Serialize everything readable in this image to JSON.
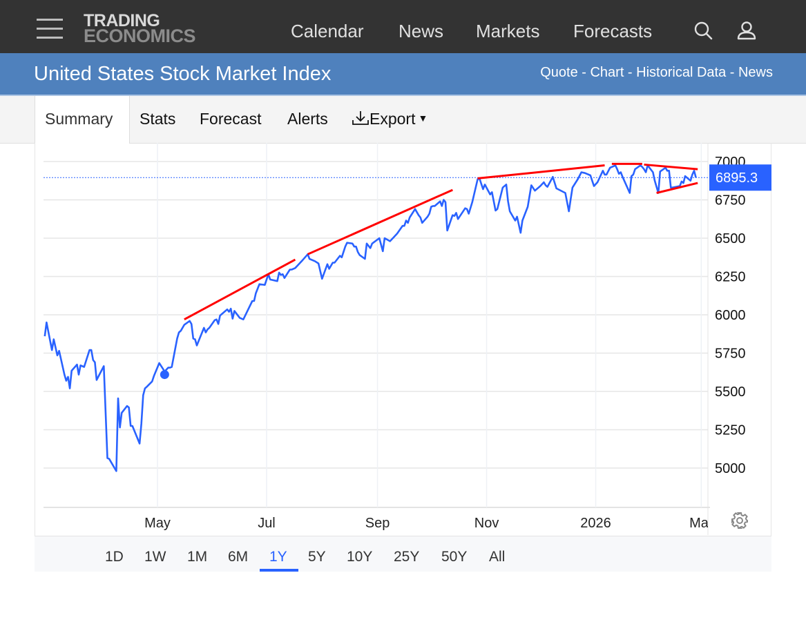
{
  "header": {
    "logo_line1": "TRADING",
    "logo_line2": "ECONOMICS",
    "nav": [
      "Calendar",
      "News",
      "Markets",
      "Forecasts"
    ],
    "icons": [
      "menu-icon",
      "search-icon",
      "user-icon"
    ]
  },
  "titlebar": {
    "title": "United States Stock Market Index",
    "links": [
      "Quote",
      "Chart",
      "Historical Data",
      "News"
    ],
    "separator": " - "
  },
  "tabs": {
    "items": [
      "Summary",
      "Stats",
      "Forecast",
      "Alerts"
    ],
    "export_label": "Export",
    "active": "Summary"
  },
  "range": {
    "options": [
      "1D",
      "1W",
      "1M",
      "6M",
      "1Y",
      "5Y",
      "10Y",
      "25Y",
      "50Y",
      "All"
    ],
    "selected": "1Y"
  },
  "colors": {
    "topbar": "#333333",
    "titlebar": "#4f81bd",
    "series": "#2962ff",
    "trendline": "#ff0000",
    "accent": "#2962ff"
  },
  "chart_data": {
    "type": "line",
    "title": "",
    "xlabel": "",
    "ylabel": "",
    "ylim": [
      4750,
      7100
    ],
    "y_ticks": [
      7000,
      6750,
      6500,
      6250,
      6000,
      5750,
      5500,
      5250,
      5000
    ],
    "x_ticks": [
      {
        "date": "2025-05-01",
        "label": "May"
      },
      {
        "date": "2025-07-01",
        "label": "Jul"
      },
      {
        "date": "2025-09-01",
        "label": "Sep"
      },
      {
        "date": "2025-11-01",
        "label": "Nov"
      },
      {
        "date": "2026-01-01",
        "label": "2026"
      },
      {
        "date": "2026-03-01",
        "label": "Mar"
      }
    ],
    "grid": true,
    "y_axis_position": "right",
    "last_value": {
      "value": 6895.3,
      "label": "6895.3"
    },
    "marker": {
      "date": "2025-05-05",
      "value": 5610
    },
    "trendlines": [
      {
        "from": [
          "2025-05-16",
          5970
        ],
        "to": [
          "2025-07-17",
          6360
        ]
      },
      {
        "from": [
          "2025-07-24",
          6395
        ],
        "to": [
          "2025-10-13",
          6815
        ]
      },
      {
        "from": [
          "2025-10-27",
          6890
        ],
        "to": [
          "2026-01-06",
          6975
        ]
      },
      {
        "from": [
          "2026-01-10",
          6985
        ],
        "to": [
          "2026-01-27",
          6985
        ]
      },
      {
        "from": [
          "2026-01-28",
          6980
        ],
        "to": [
          "2026-02-27",
          6950
        ]
      },
      {
        "from": [
          "2026-02-04",
          6795
        ],
        "to": [
          "2026-02-27",
          6860
        ]
      }
    ],
    "series": [
      {
        "points": [
          [
            "2025-02-27",
            5860
          ],
          [
            "2025-02-28",
            5950
          ],
          [
            "2025-03-03",
            5770
          ],
          [
            "2025-03-04",
            5840
          ],
          [
            "2025-03-06",
            5735
          ],
          [
            "2025-03-07",
            5765
          ],
          [
            "2025-03-10",
            5610
          ],
          [
            "2025-03-11",
            5570
          ],
          [
            "2025-03-12",
            5595
          ],
          [
            "2025-03-13",
            5520
          ],
          [
            "2025-03-14",
            5635
          ],
          [
            "2025-03-17",
            5675
          ],
          [
            "2025-03-18",
            5610
          ],
          [
            "2025-03-19",
            5670
          ],
          [
            "2025-03-21",
            5660
          ],
          [
            "2025-03-24",
            5770
          ],
          [
            "2025-03-25",
            5770
          ],
          [
            "2025-03-26",
            5705
          ],
          [
            "2025-03-27",
            5690
          ],
          [
            "2025-03-28",
            5575
          ],
          [
            "2025-04-01",
            5665
          ],
          [
            "2025-04-03",
            5065
          ],
          [
            "2025-04-04",
            5060
          ],
          [
            "2025-04-08",
            4980
          ],
          [
            "2025-04-09",
            5455
          ],
          [
            "2025-04-10",
            5265
          ],
          [
            "2025-04-11",
            5360
          ],
          [
            "2025-04-14",
            5405
          ],
          [
            "2025-04-15",
            5395
          ],
          [
            "2025-04-16",
            5275
          ],
          [
            "2025-04-17",
            5275
          ],
          [
            "2025-04-21",
            5160
          ],
          [
            "2025-04-22",
            5290
          ],
          [
            "2025-04-23",
            5475
          ],
          [
            "2025-04-24",
            5520
          ],
          [
            "2025-04-25",
            5530
          ],
          [
            "2025-04-28",
            5565
          ],
          [
            "2025-04-29",
            5600
          ],
          [
            "2025-05-02",
            5685
          ],
          [
            "2025-05-05",
            5630
          ],
          [
            "2025-05-07",
            5655
          ],
          [
            "2025-05-08",
            5655
          ],
          [
            "2025-05-09",
            5660
          ],
          [
            "2025-05-12",
            5845
          ],
          [
            "2025-05-13",
            5885
          ],
          [
            "2025-05-14",
            5895
          ],
          [
            "2025-05-16",
            5935
          ],
          [
            "2025-05-19",
            5960
          ],
          [
            "2025-05-20",
            5940
          ],
          [
            "2025-05-21",
            5845
          ],
          [
            "2025-05-22",
            5840
          ],
          [
            "2025-05-23",
            5800
          ],
          [
            "2025-05-27",
            5915
          ],
          [
            "2025-05-28",
            5885
          ],
          [
            "2025-05-29",
            5905
          ],
          [
            "2025-05-30",
            5915
          ],
          [
            "2025-06-02",
            5965
          ],
          [
            "2025-06-03",
            5970
          ],
          [
            "2025-06-04",
            5940
          ],
          [
            "2025-06-05",
            5995
          ],
          [
            "2025-06-06",
            6005
          ],
          [
            "2025-06-09",
            6035
          ],
          [
            "2025-06-10",
            6020
          ],
          [
            "2025-06-11",
            6040
          ],
          [
            "2025-06-12",
            5975
          ],
          [
            "2025-06-13",
            6025
          ],
          [
            "2025-06-16",
            5980
          ],
          [
            "2025-06-18",
            5970
          ],
          [
            "2025-06-23",
            6090
          ],
          [
            "2025-06-24",
            6090
          ],
          [
            "2025-06-25",
            6140
          ],
          [
            "2025-06-27",
            6200
          ],
          [
            "2025-06-30",
            6195
          ],
          [
            "2025-07-02",
            6265
          ],
          [
            "2025-07-03",
            6230
          ],
          [
            "2025-07-07",
            6220
          ],
          [
            "2025-07-08",
            6275
          ],
          [
            "2025-07-09",
            6260
          ],
          [
            "2025-07-10",
            6265
          ],
          [
            "2025-07-11",
            6240
          ],
          [
            "2025-07-14",
            6295
          ],
          [
            "2025-07-15",
            6295
          ],
          [
            "2025-07-17",
            6305
          ],
          [
            "2025-07-21",
            6355
          ],
          [
            "2025-07-24",
            6395
          ],
          [
            "2025-07-25",
            6365
          ],
          [
            "2025-07-28",
            6350
          ],
          [
            "2025-07-30",
            6335
          ],
          [
            "2025-08-01",
            6235
          ],
          [
            "2025-08-04",
            6330
          ],
          [
            "2025-08-05",
            6300
          ],
          [
            "2025-08-07",
            6340
          ],
          [
            "2025-08-08",
            6340
          ],
          [
            "2025-08-11",
            6385
          ],
          [
            "2025-08-12",
            6375
          ],
          [
            "2025-08-14",
            6445
          ],
          [
            "2025-08-15",
            6470
          ],
          [
            "2025-08-18",
            6465
          ],
          [
            "2025-08-19",
            6445
          ],
          [
            "2025-08-20",
            6445
          ],
          [
            "2025-08-21",
            6410
          ],
          [
            "2025-08-22",
            6390
          ],
          [
            "2025-08-25",
            6365
          ],
          [
            "2025-08-26",
            6465
          ],
          [
            "2025-08-28",
            6435
          ],
          [
            "2025-08-29",
            6465
          ],
          [
            "2025-09-02",
            6500
          ],
          [
            "2025-09-04",
            6415
          ],
          [
            "2025-09-05",
            6500
          ],
          [
            "2025-09-08",
            6480
          ],
          [
            "2025-09-10",
            6505
          ],
          [
            "2025-09-12",
            6530
          ],
          [
            "2025-09-15",
            6580
          ],
          [
            "2025-09-16",
            6580
          ],
          [
            "2025-09-17",
            6615
          ],
          [
            "2025-09-18",
            6600
          ],
          [
            "2025-09-19",
            6635
          ],
          [
            "2025-09-22",
            6690
          ],
          [
            "2025-09-24",
            6650
          ],
          [
            "2025-09-25",
            6635
          ],
          [
            "2025-09-26",
            6600
          ],
          [
            "2025-09-29",
            6640
          ],
          [
            "2025-09-30",
            6660
          ],
          [
            "2025-10-01",
            6705
          ],
          [
            "2025-10-02",
            6710
          ],
          [
            "2025-10-03",
            6710
          ],
          [
            "2025-10-06",
            6740
          ],
          [
            "2025-10-07",
            6710
          ],
          [
            "2025-10-08",
            6750
          ],
          [
            "2025-10-09",
            6735
          ],
          [
            "2025-10-10",
            6550
          ],
          [
            "2025-10-13",
            6650
          ],
          [
            "2025-10-14",
            6645
          ],
          [
            "2025-10-15",
            6665
          ],
          [
            "2025-10-16",
            6625
          ],
          [
            "2025-10-20",
            6695
          ],
          [
            "2025-10-21",
            6690
          ],
          [
            "2025-10-22",
            6660
          ],
          [
            "2025-10-24",
            6735
          ],
          [
            "2025-10-27",
            6885
          ],
          [
            "2025-10-28",
            6890
          ],
          [
            "2025-10-30",
            6820
          ],
          [
            "2025-10-31",
            6850
          ],
          [
            "2025-11-03",
            6785
          ],
          [
            "2025-11-04",
            6800
          ],
          [
            "2025-11-06",
            6680
          ],
          [
            "2025-11-07",
            6690
          ],
          [
            "2025-11-10",
            6830
          ],
          [
            "2025-11-12",
            6850
          ],
          [
            "2025-11-13",
            6740
          ],
          [
            "2025-11-14",
            6675
          ],
          [
            "2025-11-17",
            6615
          ],
          [
            "2025-11-18",
            6640
          ],
          [
            "2025-11-20",
            6535
          ],
          [
            "2025-11-21",
            6615
          ],
          [
            "2025-11-24",
            6705
          ],
          [
            "2025-11-26",
            6845
          ],
          [
            "2025-11-28",
            6810
          ],
          [
            "2025-12-01",
            6840
          ],
          [
            "2025-12-03",
            6865
          ],
          [
            "2025-12-04",
            6845
          ],
          [
            "2025-12-05",
            6835
          ],
          [
            "2025-12-08",
            6900
          ],
          [
            "2025-12-10",
            6825
          ],
          [
            "2025-12-15",
            6795
          ],
          [
            "2025-12-17",
            6675
          ],
          [
            "2025-12-18",
            6755
          ],
          [
            "2025-12-19",
            6830
          ],
          [
            "2025-12-22",
            6885
          ],
          [
            "2025-12-24",
            6930
          ],
          [
            "2025-12-26",
            6925
          ],
          [
            "2025-12-29",
            6910
          ],
          [
            "2025-12-31",
            6840
          ],
          [
            "2026-01-02",
            6865
          ],
          [
            "2026-01-05",
            6940
          ],
          [
            "2026-01-06",
            6915
          ],
          [
            "2026-01-07",
            6915
          ],
          [
            "2026-01-09",
            6960
          ],
          [
            "2026-01-12",
            6975
          ],
          [
            "2026-01-13",
            6950
          ],
          [
            "2026-01-14",
            6920
          ],
          [
            "2026-01-15",
            6930
          ],
          [
            "2026-01-16",
            6900
          ],
          [
            "2026-01-20",
            6795
          ],
          [
            "2026-01-21",
            6905
          ],
          [
            "2026-01-22",
            6915
          ],
          [
            "2026-01-23",
            6950
          ],
          [
            "2026-01-26",
            6975
          ],
          [
            "2026-01-27",
            6965
          ],
          [
            "2026-01-28",
            6950
          ],
          [
            "2026-01-29",
            6930
          ],
          [
            "2026-01-30",
            6975
          ],
          [
            "2026-02-02",
            6930
          ],
          [
            "2026-02-03",
            6875
          ],
          [
            "2026-02-05",
            6795
          ],
          [
            "2026-02-06",
            6935
          ],
          [
            "2026-02-09",
            6960
          ],
          [
            "2026-02-10",
            6940
          ],
          [
            "2026-02-11",
            6940
          ],
          [
            "2026-02-12",
            6830
          ],
          [
            "2026-02-13",
            6830
          ],
          [
            "2026-02-17",
            6840
          ],
          [
            "2026-02-18",
            6870
          ],
          [
            "2026-02-19",
            6860
          ],
          [
            "2026-02-20",
            6905
          ],
          [
            "2026-02-23",
            6875
          ],
          [
            "2026-02-24",
            6915
          ],
          [
            "2026-02-25",
            6940
          ],
          [
            "2026-02-26",
            6895.3
          ]
        ]
      }
    ]
  }
}
